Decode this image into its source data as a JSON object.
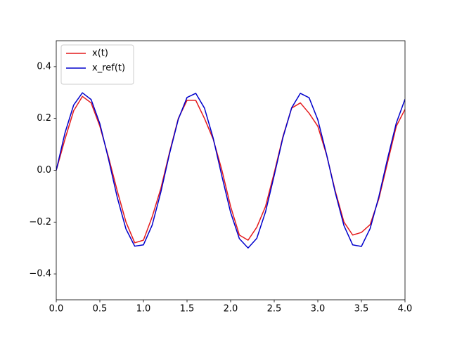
{
  "chart_data": {
    "type": "line",
    "x": [
      0,
      0.1,
      0.2,
      0.3,
      0.4,
      0.5,
      0.6,
      0.7,
      0.8,
      0.9,
      1.0,
      1.1,
      1.2,
      1.3,
      1.4,
      1.5,
      1.6,
      1.7,
      1.8,
      1.9,
      2.0,
      2.1,
      2.2,
      2.3,
      2.4,
      2.5,
      2.6,
      2.7,
      2.8,
      2.9,
      3.0,
      3.1,
      3.2,
      3.3,
      3.4,
      3.5,
      3.6,
      3.7,
      3.8,
      3.9,
      4.0
    ],
    "series": [
      {
        "name": "x(t)",
        "color": "#e41a1c",
        "values": [
          0,
          0.12,
          0.23,
          0.285,
          0.26,
          0.17,
          0.05,
          -0.08,
          -0.2,
          -0.28,
          -0.27,
          -0.18,
          -0.07,
          0.07,
          0.2,
          0.27,
          0.27,
          0.2,
          0.12,
          0.0,
          -0.14,
          -0.25,
          -0.27,
          -0.22,
          -0.14,
          -0.01,
          0.13,
          0.24,
          0.26,
          0.22,
          0.17,
          0.06,
          -0.08,
          -0.2,
          -0.25,
          -0.24,
          -0.21,
          -0.11,
          0.03,
          0.17,
          0.235
        ]
      },
      {
        "name": "x_ref(t)",
        "color": "#0000cc",
        "values": [
          0,
          0.144,
          0.252,
          0.299,
          0.273,
          0.18,
          0.042,
          -0.105,
          -0.227,
          -0.293,
          -0.288,
          -0.212,
          -0.084,
          0.065,
          0.197,
          0.281,
          0.297,
          0.24,
          0.124,
          -0.023,
          -0.163,
          -0.264,
          -0.3,
          -0.263,
          -0.161,
          -0.02,
          0.126,
          0.241,
          0.297,
          0.28,
          0.195,
          0.062,
          -0.086,
          -0.214,
          -0.288,
          -0.294,
          -0.225,
          -0.102,
          0.045,
          0.182,
          0.274
        ]
      }
    ],
    "xlim": [
      0,
      4
    ],
    "ylim": [
      -0.5,
      0.5
    ],
    "xticks": [
      {
        "value": 0,
        "label": "0.0"
      },
      {
        "value": 0.5,
        "label": "0.5"
      },
      {
        "value": 1,
        "label": "1.0"
      },
      {
        "value": 1.5,
        "label": "1.5"
      },
      {
        "value": 2,
        "label": "2.0"
      },
      {
        "value": 2.5,
        "label": "2.5"
      },
      {
        "value": 3,
        "label": "3.0"
      },
      {
        "value": 3.5,
        "label": "3.5"
      },
      {
        "value": 4,
        "label": "4.0"
      }
    ],
    "yticks": [
      {
        "value": -0.4,
        "label": "−0.4"
      },
      {
        "value": -0.2,
        "label": "−0.2"
      },
      {
        "value": 0,
        "label": "0.0"
      },
      {
        "value": 0.2,
        "label": "0.2"
      },
      {
        "value": 0.4,
        "label": "0.4"
      }
    ],
    "legend": "upper left",
    "grid": false
  }
}
